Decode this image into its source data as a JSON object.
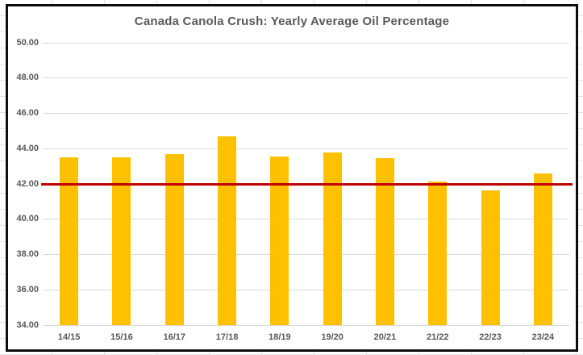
{
  "chart_data": {
    "type": "bar",
    "title": "Canada Canola Crush: Yearly Average Oil Percentage",
    "categories": [
      "14/15",
      "15/16",
      "16/17",
      "17/18",
      "18/19",
      "19/20",
      "20/21",
      "21/22",
      "22/23",
      "23/24"
    ],
    "values": [
      43.5,
      43.5,
      43.7,
      44.7,
      43.55,
      43.8,
      43.45,
      42.15,
      41.65,
      42.6
    ],
    "xlabel": "",
    "ylabel": "",
    "ylim": [
      34,
      50
    ],
    "ytick_step": 2,
    "ytick_decimals": 2,
    "grid": true,
    "legend": "none",
    "reference_line": {
      "value": 42.0,
      "color": "#c00000"
    },
    "colors": {
      "bar": "#ffc000",
      "gridline": "#d9d9d9",
      "axis_text": "#595959",
      "title_text": "#595959",
      "frame_border": "#0d0d0d"
    }
  }
}
